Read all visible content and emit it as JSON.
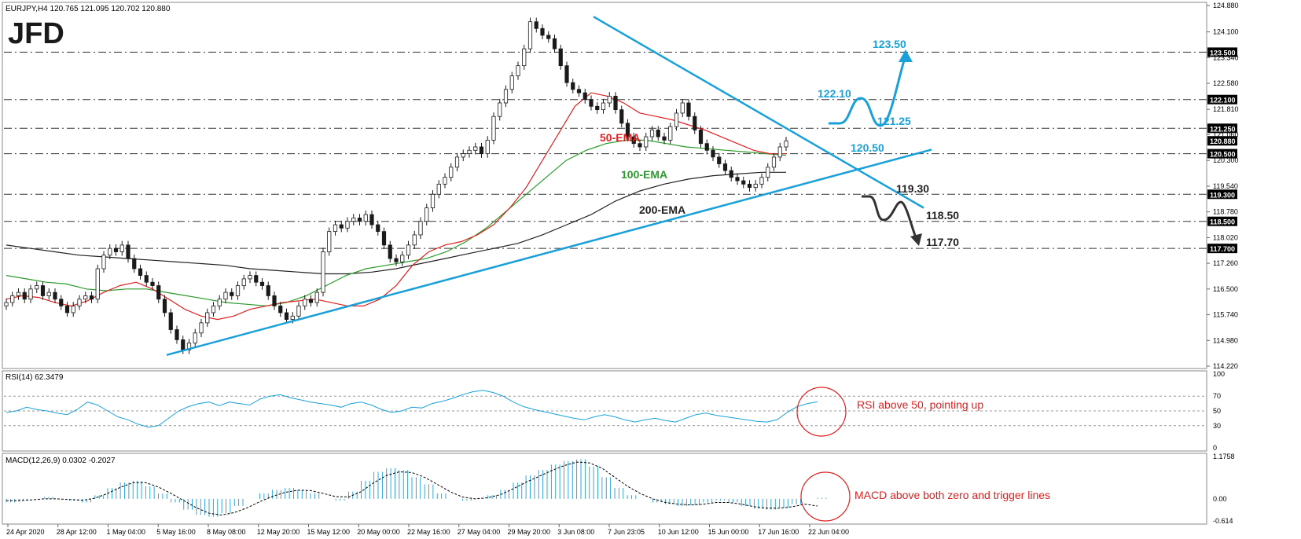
{
  "header": {
    "symbol_line": "EURJPY,H4  120.765 121.095 120.702 120.880"
  },
  "logo": {
    "text": "JFD"
  },
  "colors": {
    "grid": "#9a9a9a",
    "trend": "#1aa0d8",
    "ema50": "#e02020",
    "ema100": "#2a9a2a",
    "ema200": "#222222",
    "candle": "#1a1a1a",
    "cyan_text": "#1aa0d8",
    "annotation": "#e02020",
    "price_box": "#000000"
  },
  "chart_data": [
    {
      "type": "candlestick",
      "title": "EURJPY,H4",
      "ohlc_last": {
        "open": 120.765,
        "high": 121.095,
        "low": 120.702,
        "close": 120.88
      },
      "y_ticks": [
        "124.880",
        "124.100",
        "123.340",
        "122.580",
        "121.810",
        "121.060",
        "120.300",
        "119.540",
        "118.780",
        "118.020",
        "117.260",
        "116.500",
        "115.740",
        "114.980",
        "114.220"
      ],
      "ylim": [
        114.22,
        124.88
      ],
      "levels": [
        {
          "value": 123.5,
          "label": "123.500",
          "line": "dash-dot"
        },
        {
          "value": 122.1,
          "label": "122.100",
          "line": "dash-dot"
        },
        {
          "value": 121.25,
          "label": "121.250",
          "line": "dash-dot"
        },
        {
          "value": 120.88,
          "label": "120.880",
          "line": "none"
        },
        {
          "value": 120.5,
          "label": "120.500",
          "line": "dash-dot"
        },
        {
          "value": 119.3,
          "label": "119.300",
          "line": "dash-dot"
        },
        {
          "value": 118.5,
          "label": "118.500",
          "line": "dash-dot"
        },
        {
          "value": 117.7,
          "label": "117.700",
          "line": "dash-dot"
        }
      ],
      "series_labels": {
        "ema50": "50-EMA",
        "ema100": "100-EMA",
        "ema200": "200-EMA"
      },
      "scenario_labels": {
        "up": [
          "123.50",
          "122.10",
          "121.25",
          "120.50"
        ],
        "down": [
          "119.30",
          "118.50",
          "117.70"
        ]
      },
      "closes": [
        116.1,
        116.3,
        116.4,
        116.2,
        116.5,
        116.6,
        116.3,
        116.4,
        116.2,
        116.0,
        115.8,
        116.0,
        116.2,
        116.3,
        116.2,
        117.1,
        117.5,
        117.7,
        117.6,
        117.8,
        117.4,
        117.1,
        116.9,
        116.7,
        116.6,
        116.2,
        115.8,
        115.3,
        115.0,
        114.7,
        114.9,
        115.2,
        115.5,
        115.8,
        116.0,
        116.2,
        116.4,
        116.3,
        116.6,
        116.8,
        116.9,
        116.7,
        116.6,
        116.3,
        116.0,
        115.8,
        115.6,
        115.7,
        116.0,
        116.2,
        116.1,
        116.4,
        117.6,
        118.2,
        118.4,
        118.3,
        118.5,
        118.6,
        118.5,
        118.7,
        118.4,
        118.2,
        117.8,
        117.4,
        117.3,
        117.5,
        117.8,
        118.1,
        118.5,
        118.9,
        119.3,
        119.6,
        119.8,
        120.1,
        120.4,
        120.5,
        120.6,
        120.7,
        120.5,
        120.9,
        121.6,
        122.0,
        122.4,
        122.8,
        123.1,
        123.6,
        124.4,
        124.2,
        124.0,
        123.9,
        123.6,
        123.1,
        122.6,
        122.4,
        122.3,
        122.1,
        121.9,
        121.8,
        122.0,
        122.2,
        121.8,
        121.4,
        121.0,
        120.8,
        120.7,
        121.0,
        121.2,
        121.0,
        120.9,
        121.3,
        121.7,
        122.0,
        121.6,
        121.2,
        120.8,
        120.6,
        120.4,
        120.2,
        120.0,
        119.8,
        119.7,
        119.6,
        119.5,
        119.6,
        119.8,
        120.1,
        120.4,
        120.7,
        120.88
      ],
      "ema50": [
        116.2,
        116.3,
        116.25,
        116.1,
        116.0,
        116.15,
        116.4,
        116.6,
        116.7,
        116.5,
        116.2,
        115.9,
        115.7,
        115.6,
        115.7,
        115.9,
        116.0,
        116.1,
        116.15,
        116.2,
        116.1,
        116.0,
        116.0,
        116.2,
        116.6,
        117.2,
        117.6,
        117.8,
        117.9,
        118.1,
        118.4,
        118.9,
        119.5,
        120.3,
        121.1,
        121.9,
        122.3,
        122.2,
        122.0,
        121.7,
        121.6,
        121.5,
        121.35,
        121.2,
        121.0,
        120.8,
        120.6,
        120.5,
        120.5
      ],
      "ema100": [
        116.9,
        116.8,
        116.7,
        116.65,
        116.5,
        116.45,
        116.5,
        116.5,
        116.4,
        116.3,
        116.2,
        116.1,
        116.05,
        116.0,
        116.1,
        116.3,
        116.6,
        116.9,
        117.1,
        117.2,
        117.3,
        117.4,
        117.6,
        117.9,
        118.3,
        118.8,
        119.3,
        119.8,
        120.3,
        120.6,
        120.8,
        120.9,
        120.9,
        120.8,
        120.7,
        120.65,
        120.6,
        120.55,
        120.5,
        120.45
      ],
      "ema200": [
        117.8,
        117.7,
        117.6,
        117.5,
        117.45,
        117.4,
        117.35,
        117.3,
        117.25,
        117.2,
        117.1,
        117.05,
        117.0,
        116.95,
        116.95,
        117.0,
        117.1,
        117.25,
        117.4,
        117.55,
        117.7,
        117.85,
        118.1,
        118.4,
        118.7,
        119.1,
        119.4,
        119.6,
        119.75,
        119.85,
        119.9,
        119.95,
        119.95
      ]
    },
    {
      "type": "line",
      "title": "RSI(14) 62.3479",
      "y_ticks": [
        "100",
        "70",
        "50",
        "30",
        "0"
      ],
      "ylim": [
        0,
        100
      ],
      "levels": [
        70,
        50,
        30
      ],
      "values": [
        48,
        50,
        55,
        52,
        50,
        47,
        45,
        52,
        62,
        58,
        50,
        42,
        38,
        32,
        28,
        30,
        40,
        50,
        56,
        60,
        62,
        57,
        62,
        60,
        58,
        66,
        70,
        72,
        68,
        65,
        62,
        60,
        58,
        55,
        60,
        62,
        58,
        52,
        48,
        50,
        55,
        54,
        60,
        63,
        67,
        72,
        76,
        78,
        75,
        70,
        62,
        56,
        52,
        49,
        46,
        43,
        40,
        38,
        42,
        45,
        42,
        38,
        35,
        38,
        40,
        37,
        35,
        40,
        45,
        47,
        44,
        42,
        40,
        38,
        36,
        35,
        38,
        48,
        56,
        60,
        62.3
      ]
    },
    {
      "type": "bar",
      "title": "MACD(12,26,9) 0.0302 -0.2027",
      "y_ticks": [
        "1.1758",
        "0.00",
        "-0.614"
      ],
      "ylim": [
        -0.614,
        1.1758
      ],
      "histogram": [
        -0.1,
        -0.05,
        0.0,
        0.05,
        0.0,
        -0.05,
        -0.1,
        0.1,
        0.3,
        0.45,
        0.5,
        0.35,
        0.15,
        -0.1,
        -0.3,
        -0.45,
        -0.5,
        -0.4,
        -0.2,
        0.0,
        0.15,
        0.25,
        0.3,
        0.25,
        0.15,
        0.0,
        -0.05,
        0.2,
        0.5,
        0.75,
        0.85,
        0.8,
        0.6,
        0.4,
        0.15,
        0.0,
        -0.05,
        0.0,
        0.1,
        0.25,
        0.45,
        0.65,
        0.8,
        0.95,
        1.05,
        1.1,
        0.9,
        0.6,
        0.3,
        0.1,
        0.0,
        -0.1,
        -0.15,
        -0.2,
        -0.18,
        -0.1,
        -0.05,
        -0.1,
        -0.2,
        -0.28,
        -0.3,
        -0.25,
        -0.15,
        0.0,
        0.03
      ],
      "signal": [
        -0.05,
        -0.05,
        -0.03,
        0.0,
        0.0,
        -0.02,
        -0.04,
        0.02,
        0.15,
        0.32,
        0.45,
        0.45,
        0.33,
        0.15,
        -0.05,
        -0.25,
        -0.4,
        -0.45,
        -0.38,
        -0.25,
        -0.08,
        0.07,
        0.18,
        0.24,
        0.23,
        0.15,
        0.06,
        0.05,
        0.2,
        0.45,
        0.65,
        0.75,
        0.73,
        0.6,
        0.4,
        0.2,
        0.05,
        0.0,
        0.03,
        0.12,
        0.28,
        0.46,
        0.62,
        0.78,
        0.92,
        1.02,
        1.0,
        0.85,
        0.6,
        0.35,
        0.15,
        0.0,
        -0.1,
        -0.15,
        -0.17,
        -0.15,
        -0.1,
        -0.1,
        -0.15,
        -0.22,
        -0.26,
        -0.26,
        -0.22,
        -0.15,
        -0.2
      ]
    }
  ],
  "time_axis": [
    "24 Apr 2020",
    "28 Apr 12:00",
    "1 May 04:00",
    "5 May 16:00",
    "8 May 08:00",
    "12 May 20:00",
    "15 May 12:00",
    "20 May 00:00",
    "22 May 16:00",
    "27 May 04:00",
    "29 May 20:00",
    "3 Jun 08:00",
    "7 Jun 23:05",
    "10 Jun 12:00",
    "15 Jun 00:00",
    "17 Jun 16:00",
    "22 Jun 04:00"
  ],
  "annotations": {
    "rsi": "RSI above 50, pointing up",
    "macd": "MACD above both zero and trigger lines"
  }
}
